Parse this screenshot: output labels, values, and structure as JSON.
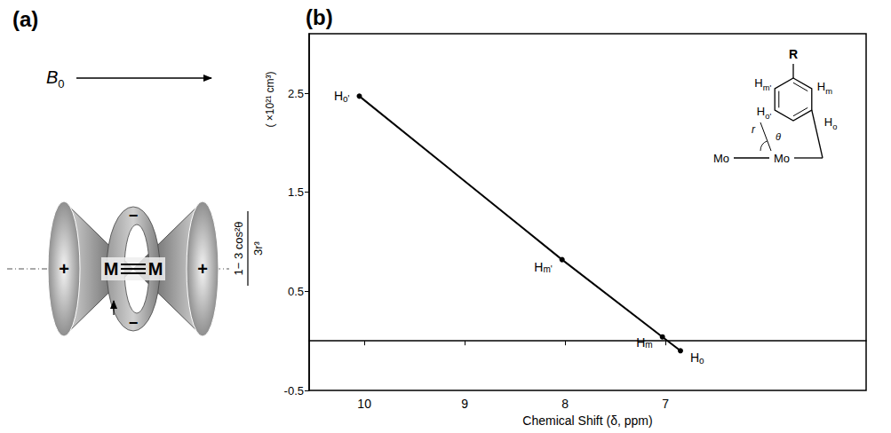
{
  "chart_data": {
    "type": "line",
    "panel_label": "(b)",
    "x_label": "Chemical Shift (δ, ppm)",
    "y_label": {
      "numerator": "1− 3 cos²θ",
      "denominator": "3r³",
      "units": "( ×10²¹ cm³)"
    },
    "x": [
      10.05,
      8.03,
      7.03,
      6.85
    ],
    "values": [
      2.47,
      0.82,
      0.04,
      -0.1
    ],
    "point_labels": [
      "Ho'",
      "Hm'",
      "Hm",
      "Ho"
    ],
    "color": "#000000",
    "marker": "circle",
    "line_style": "solid",
    "xlim": [
      10.55,
      5.0
    ],
    "xticks": [
      10,
      9,
      8,
      7
    ],
    "ylim": [
      -0.5,
      3.1
    ],
    "yticks": [
      -0.5,
      0.5,
      1.5,
      2.5
    ],
    "grid": false
  },
  "inset": {
    "substituent": "R",
    "atoms": [
      "Mo",
      "Mo"
    ],
    "protons": {
      "meta_prime": "Hm'",
      "meta": "Hm",
      "ortho_prime": "Ho'",
      "ortho": "Ho"
    },
    "distance": "r",
    "angle": "θ"
  },
  "panel_a": {
    "panel_label": "(a)",
    "field": "B",
    "field_subscript": "0",
    "metals": [
      "M",
      "M"
    ],
    "cone_sign": "+",
    "ring_sign": "−"
  }
}
